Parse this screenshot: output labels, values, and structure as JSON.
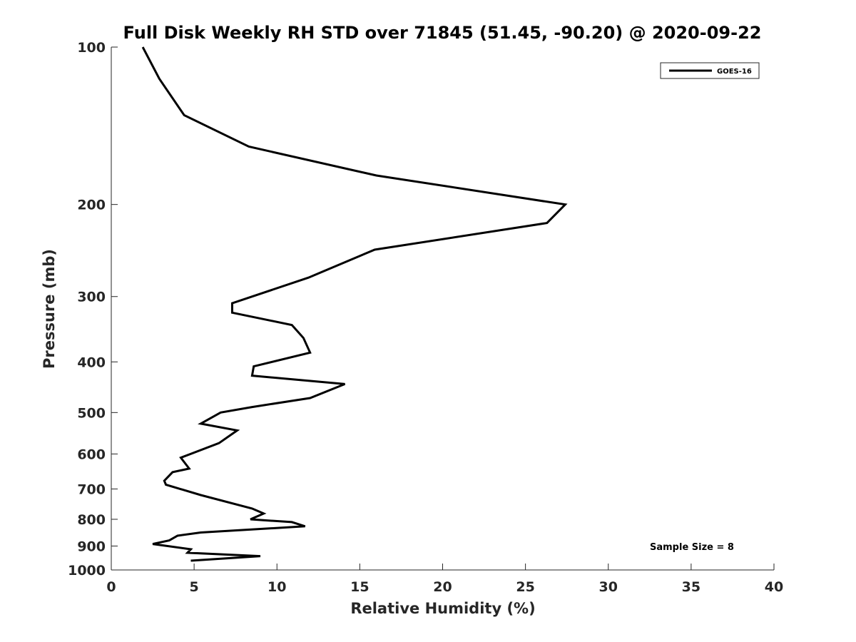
{
  "chart_data": {
    "type": "line",
    "title": "Full Disk Weekly RH STD over 71845 (51.45, -90.20) @ 2020-09-22",
    "xlabel": "Relative Humidity (%)",
    "ylabel": "Pressure (mb)",
    "xlim": [
      0,
      40
    ],
    "ylim": [
      100,
      1000
    ],
    "y_scale": "log",
    "y_reversed": true,
    "xticks": [
      0,
      5,
      10,
      15,
      20,
      25,
      30,
      35,
      40
    ],
    "yticks": [
      100,
      200,
      300,
      400,
      500,
      600,
      700,
      800,
      900,
      1000
    ],
    "grid": false,
    "legend_position": "top-right",
    "annotation": "Sample Size = 8",
    "series": [
      {
        "name": "GOES-16",
        "color": "#000000",
        "x": [
          1.9,
          2.9,
          4.4,
          8.3,
          16.0,
          27.4,
          26.3,
          15.9,
          11.9,
          7.3,
          7.3,
          10.9,
          11.6,
          12.0,
          8.6,
          8.5,
          14.1,
          12.0,
          8.5,
          6.6,
          5.4,
          7.6,
          6.5,
          4.2,
          4.7,
          3.7,
          3.2,
          3.3,
          5.4,
          8.5,
          9.2,
          8.4,
          10.9,
          11.7,
          5.4,
          4.0,
          3.5,
          2.5,
          4.8,
          4.6,
          9.0,
          4.8
        ],
        "y": [
          100,
          115,
          135,
          155,
          176,
          200,
          217,
          244,
          276,
          309,
          322,
          340,
          360,
          384,
          408,
          425,
          441,
          469,
          488,
          500,
          525,
          541,
          572,
          610,
          640,
          650,
          675,
          687,
          719,
          763,
          780,
          800,
          810,
          825,
          848,
          860,
          878,
          892,
          913,
          927,
          941,
          960
        ]
      }
    ]
  }
}
